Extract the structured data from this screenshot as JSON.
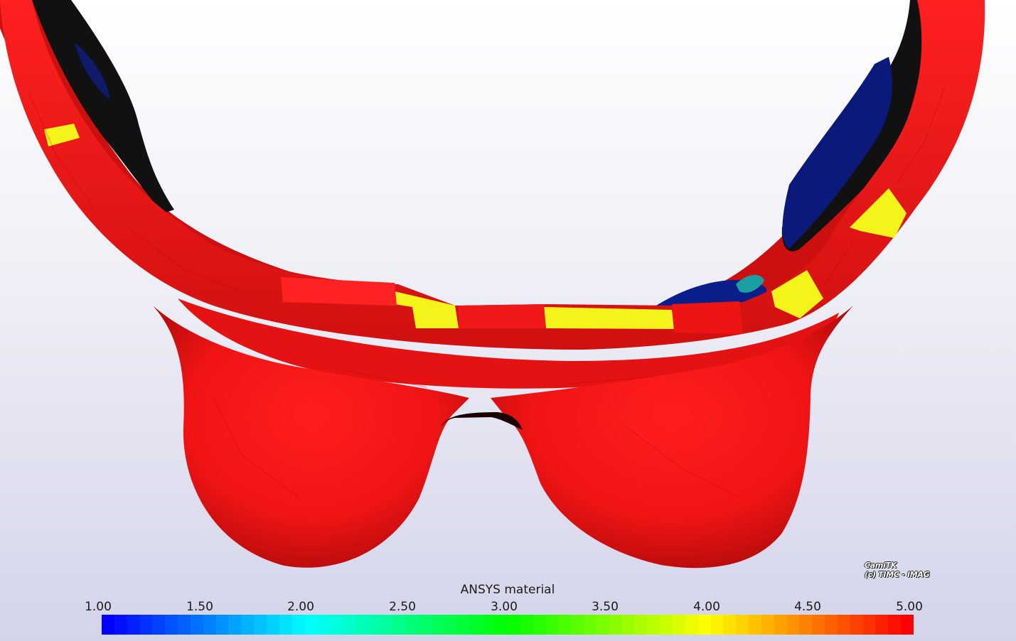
{
  "scene": {
    "colors": {
      "background_top": "#ffffff",
      "background_bottom": "#d3d4ea",
      "surface_red": "#ff1a1a",
      "surface_yellow": "#f4f41a",
      "inner_dark": "#111111",
      "inner_blue": "#0b1a7a",
      "edge_dark": "#a00000"
    }
  },
  "watermark": {
    "line1": "CamiTK",
    "line2": "(c) TIMC - IMAG"
  },
  "colorbar": {
    "title": "ANSYS material",
    "ticks": [
      "1.00",
      "1.50",
      "2.00",
      "2.50",
      "3.00",
      "3.50",
      "4.00",
      "4.50",
      "5.00"
    ],
    "range": [
      1.0,
      5.0
    ],
    "swatch_count": 64,
    "colormap": "blue-to-red (jet)"
  }
}
